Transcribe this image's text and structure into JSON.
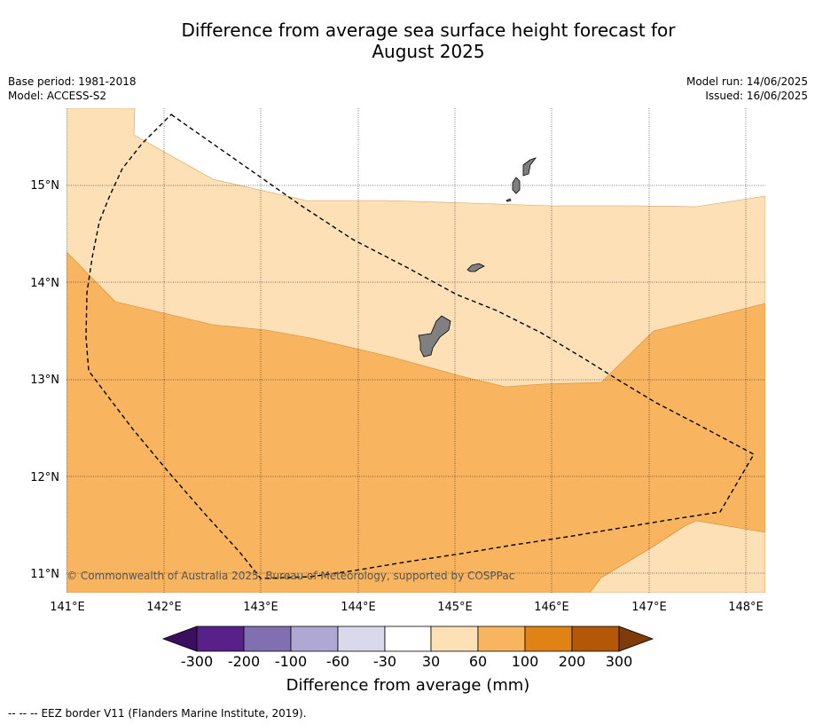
{
  "map": {
    "title": "Difference from average sea surface height forecast for\nAugust 2025",
    "base_period": "Base period: 1981-2018",
    "model": "Model: ACCESS-S2",
    "model_run": "Model run: 14/06/2025",
    "issued": "Issued: 16/06/2025",
    "copyright": "© Commonwealth of Australia 2025, Bureau of Meteorology, supported by COSPPac",
    "footnote_symbol": "-- -- --",
    "footnote_text": "EEZ border V11 (Flanders Marine Institute, 2019).",
    "lon_labels": [
      "141°E",
      "142°E",
      "143°E",
      "144°E",
      "145°E",
      "146°E",
      "147°E",
      "148°E"
    ],
    "lat_labels": [
      "15°N",
      "14°N",
      "13°N",
      "12°N",
      "11°N"
    ],
    "extent": {
      "lon_min": 141,
      "lon_max": 148.2,
      "lat_min": 10.8,
      "lat_max": 15.8
    }
  },
  "colorbar": {
    "label": "Difference from average (mm)",
    "ticks": [
      "-300",
      "-200",
      "-100",
      "-60",
      "-30",
      "30",
      "60",
      "100",
      "200",
      "300"
    ],
    "colors": [
      "#3b0f5e",
      "#58218a",
      "#8170b0",
      "#afa8d2",
      "#dad9ec",
      "#ffffff",
      "#fde0b6",
      "#f9b45f",
      "#e08214",
      "#b35806",
      "#7f3b08"
    ]
  },
  "colors": {
    "shade_30_60": "#fde0b6",
    "shade_60_100": "#f9b45f",
    "land": "#808080"
  }
}
